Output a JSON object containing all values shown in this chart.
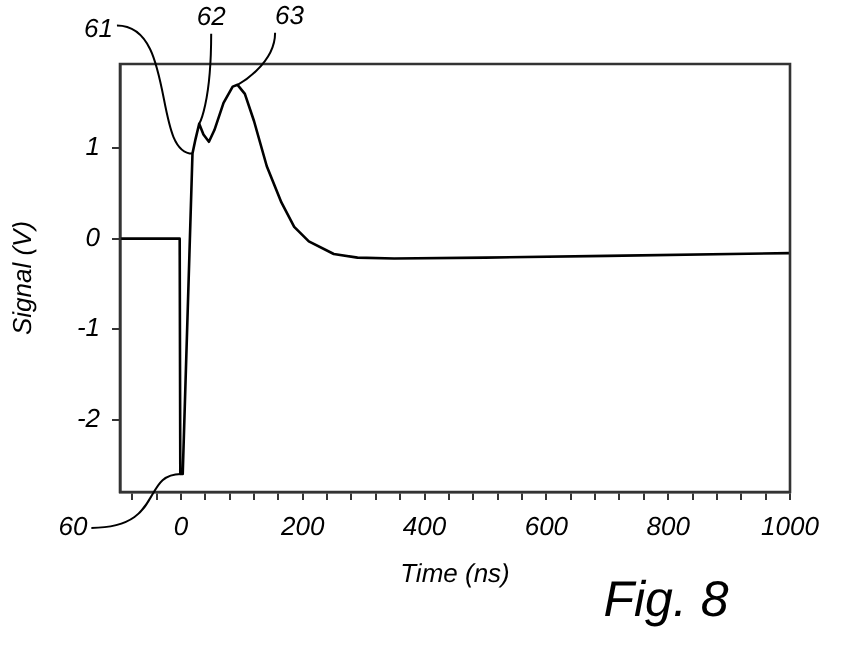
{
  "chart_data": {
    "type": "line",
    "xlabel": "Time (ns)",
    "ylabel": "Signal (V)",
    "x": [
      -100,
      -2,
      -1,
      3,
      19,
      24,
      30,
      37,
      46,
      55,
      70,
      85,
      93,
      105,
      120,
      141,
      165,
      186,
      210,
      251,
      290,
      350,
      500,
      700,
      1000
    ],
    "series": [
      {
        "color": "#000000",
        "values": [
          0,
          0,
          -2.6,
          -2.6,
          0.94,
          1.1,
          1.27,
          1.15,
          1.07,
          1.2,
          1.5,
          1.68,
          1.7,
          1.6,
          1.3,
          0.8,
          0.4,
          0.13,
          -0.03,
          -0.17,
          -0.21,
          -0.22,
          -0.21,
          -0.19,
          -0.16
        ]
      }
    ],
    "xlim": [
      -100,
      1000
    ],
    "xticks": [
      {
        "value": -80,
        "label": null
      },
      {
        "value": -40,
        "label": null
      },
      0,
      {
        "value": 40,
        "label": null
      },
      {
        "value": 80,
        "label": null
      },
      {
        "value": 120,
        "label": null
      },
      {
        "value": 160,
        "label": null
      },
      200,
      {
        "value": 240,
        "label": null
      },
      {
        "value": 280,
        "label": null
      },
      {
        "value": 320,
        "label": null
      },
      {
        "value": 360,
        "label": null
      },
      400,
      {
        "value": 440,
        "label": null
      },
      {
        "value": 480,
        "label": null
      },
      {
        "value": 520,
        "label": null
      },
      {
        "value": 560,
        "label": null
      },
      600,
      {
        "value": 640,
        "label": null
      },
      {
        "value": 680,
        "label": null
      },
      {
        "value": 720,
        "label": null
      },
      {
        "value": 760,
        "label": null
      },
      800,
      {
        "value": 840,
        "label": null
      },
      {
        "value": 880,
        "label": null
      },
      {
        "value": 920,
        "label": null
      },
      {
        "value": 960,
        "label": null
      },
      1000
    ],
    "ylim": [
      -2.8,
      1.93
    ],
    "yticks": [
      -2,
      -1,
      0,
      1
    ],
    "grid": false,
    "legend": false,
    "marker": "none",
    "line_style": "solid",
    "annotations": [
      {
        "text": "60",
        "x": 0,
        "y": -2.6
      },
      {
        "text": "61",
        "x": 19,
        "y": 0.94
      },
      {
        "text": "62",
        "x": 30,
        "y": 1.27
      },
      {
        "text": "63",
        "x": 93,
        "y": 1.7
      },
      "Fig. 8"
    ]
  }
}
